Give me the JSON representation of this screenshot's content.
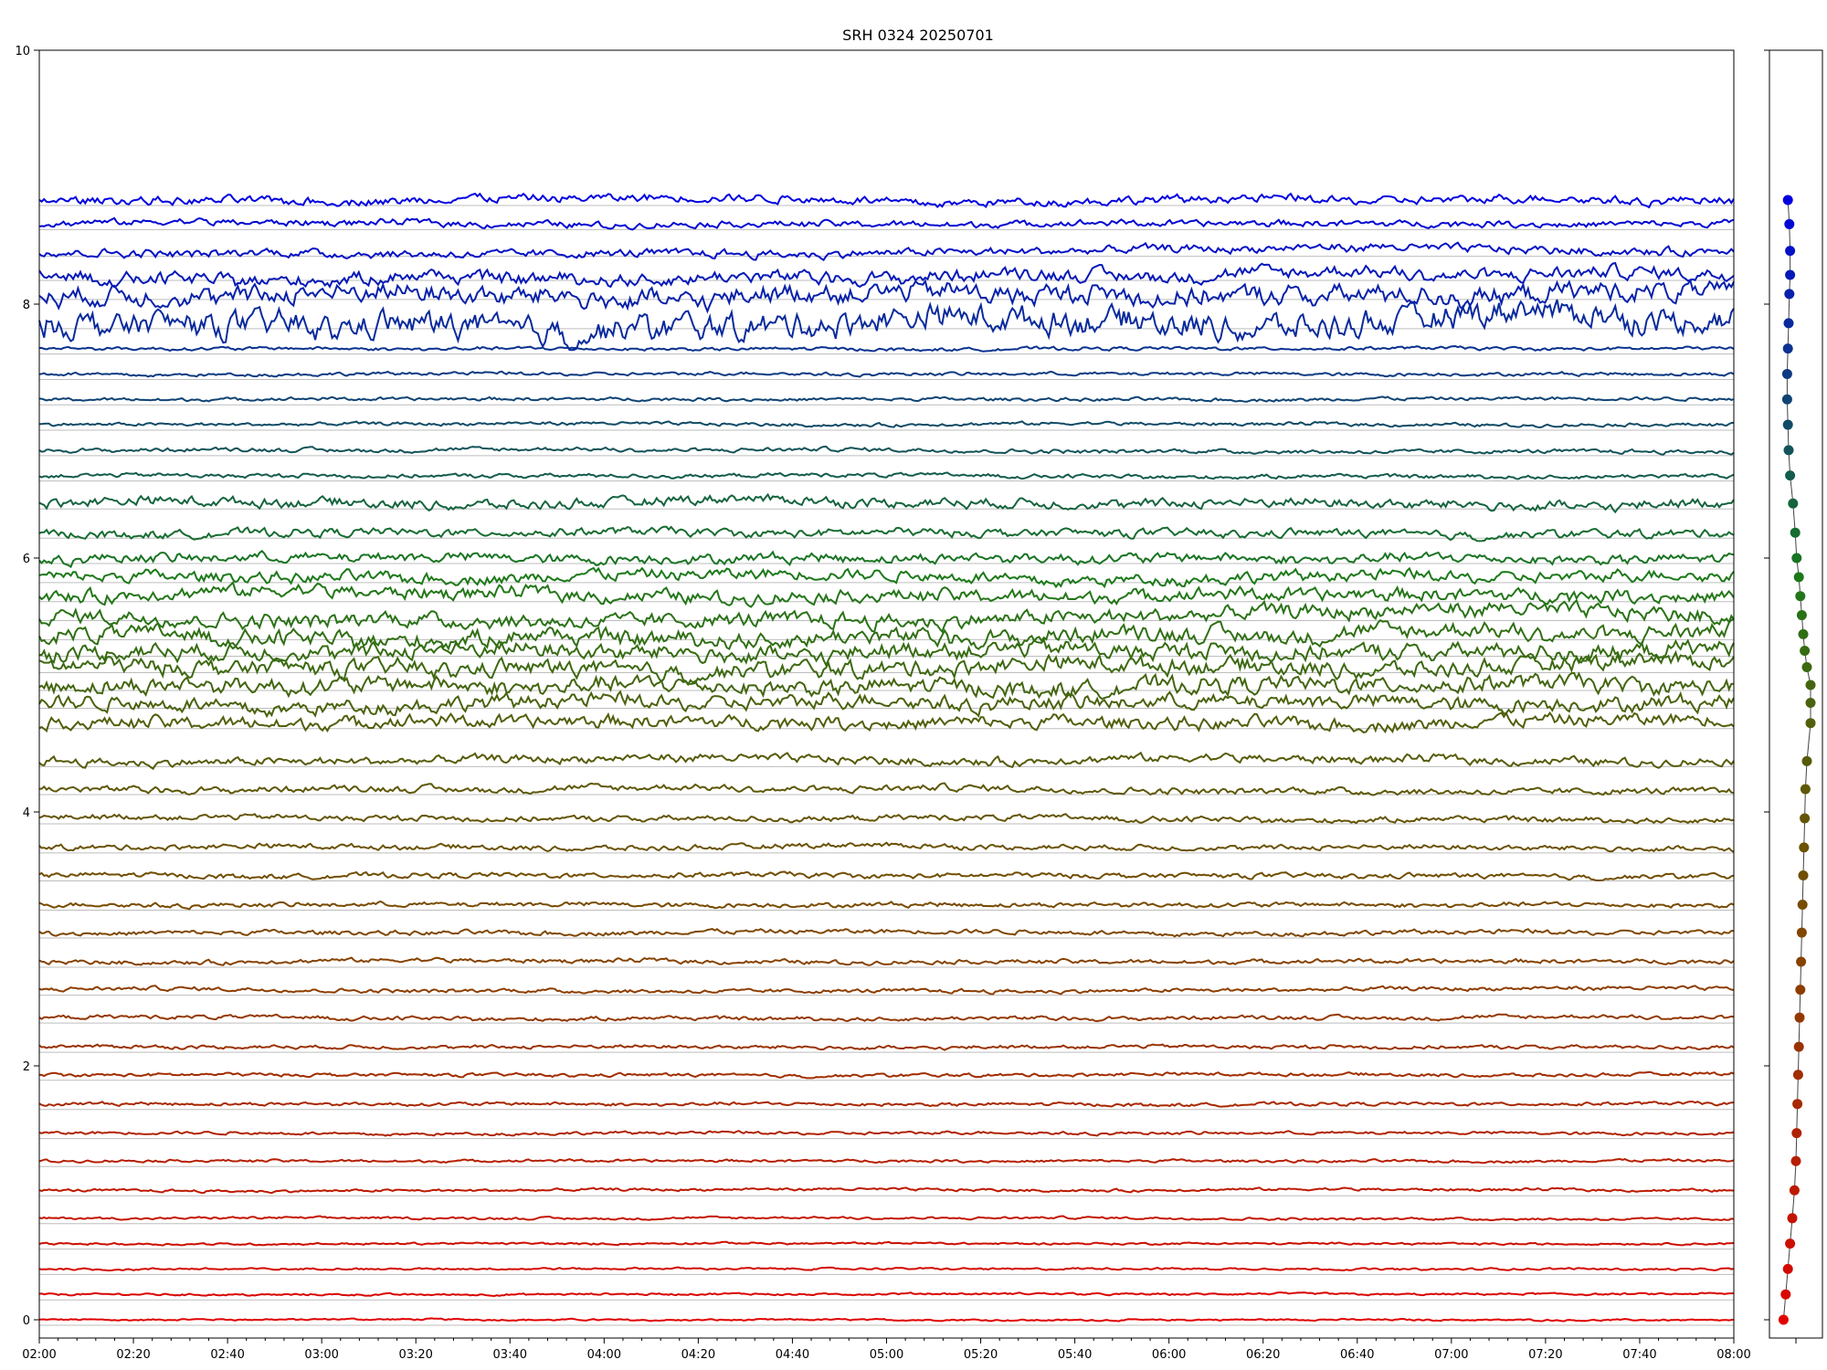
{
  "chart_data": {
    "type": "line",
    "title": "SRH 0324 20250701",
    "xlabel": "",
    "ylabel": "",
    "x_range": [
      "02:00",
      "08:00"
    ],
    "ylim": [
      0,
      10
    ],
    "grid": "horizontal",
    "x_ticks": [
      "02:00",
      "02:20",
      "02:40",
      "03:00",
      "03:20",
      "03:40",
      "04:00",
      "04:20",
      "04:40",
      "05:00",
      "05:20",
      "05:40",
      "06:00",
      "06:20",
      "06:40",
      "07:00",
      "07:20",
      "07:40",
      "08:00"
    ],
    "y_ticks": [
      "0",
      "2",
      "4",
      "6",
      "8",
      "10"
    ],
    "colors": {
      "low": "#e00000",
      "mid": "#7a4a00",
      "green": "#1a7a1a",
      "high": "#0000e0"
    },
    "series_baselines": [
      0.0,
      0.2,
      0.4,
      0.6,
      0.8,
      1.02,
      1.25,
      1.47,
      1.7,
      1.93,
      2.15,
      2.38,
      2.6,
      2.82,
      3.05,
      3.27,
      3.5,
      3.72,
      3.95,
      4.18,
      4.4,
      4.7,
      4.86,
      5.0,
      5.14,
      5.27,
      5.4,
      5.55,
      5.7,
      5.85,
      6.0,
      6.2,
      6.43,
      6.65,
      6.85,
      7.05,
      7.25,
      7.45,
      7.65,
      7.85,
      8.08,
      8.23,
      8.42,
      8.63,
      8.82
    ],
    "series_amplitudes": [
      0.005,
      0.006,
      0.006,
      0.006,
      0.007,
      0.008,
      0.008,
      0.009,
      0.01,
      0.01,
      0.011,
      0.012,
      0.012,
      0.013,
      0.014,
      0.014,
      0.015,
      0.016,
      0.017,
      0.02,
      0.025,
      0.04,
      0.045,
      0.05,
      0.05,
      0.05,
      0.05,
      0.045,
      0.04,
      0.035,
      0.03,
      0.025,
      0.03,
      0.012,
      0.012,
      0.01,
      0.01,
      0.01,
      0.01,
      0.08,
      0.06,
      0.04,
      0.025,
      0.02,
      0.025
    ],
    "side_panel": {
      "type": "scatter",
      "points": [
        0.3,
        0.6,
        0.9,
        1.2,
        1.5,
        1.8,
        2.0,
        2.1,
        2.2,
        2.3,
        2.4,
        2.5,
        2.6,
        2.7,
        2.8,
        2.9,
        3.0,
        3.1,
        3.2,
        3.3,
        3.5,
        4.0,
        4.0,
        4.0,
        3.5,
        3.2,
        3.0,
        2.8,
        2.6,
        2.4,
        2.1,
        1.9,
        1.6,
        1.2,
        1.0,
        0.9,
        0.8,
        0.8,
        0.9,
        1.0,
        1.1,
        1.2,
        1.2,
        1.1,
        0.9
      ]
    }
  }
}
